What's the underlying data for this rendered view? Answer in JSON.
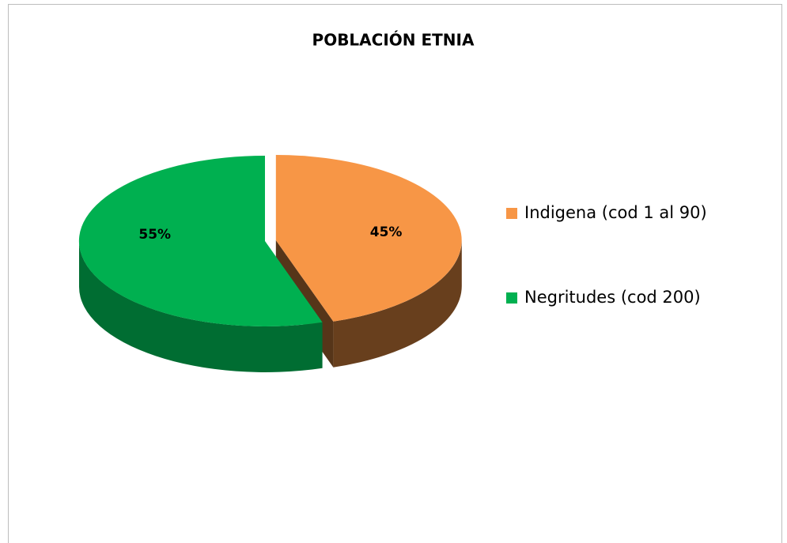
{
  "chart_data": {
    "type": "pie",
    "title": "POBLACIÓN ETNIA",
    "categories": [
      "Indigena (cod 1 al 90)",
      "Negritudes (cod 200)"
    ],
    "values": [
      45,
      55
    ],
    "value_labels": [
      "45%",
      "55%"
    ],
    "colors": [
      "#f79646",
      "#00b050"
    ]
  }
}
